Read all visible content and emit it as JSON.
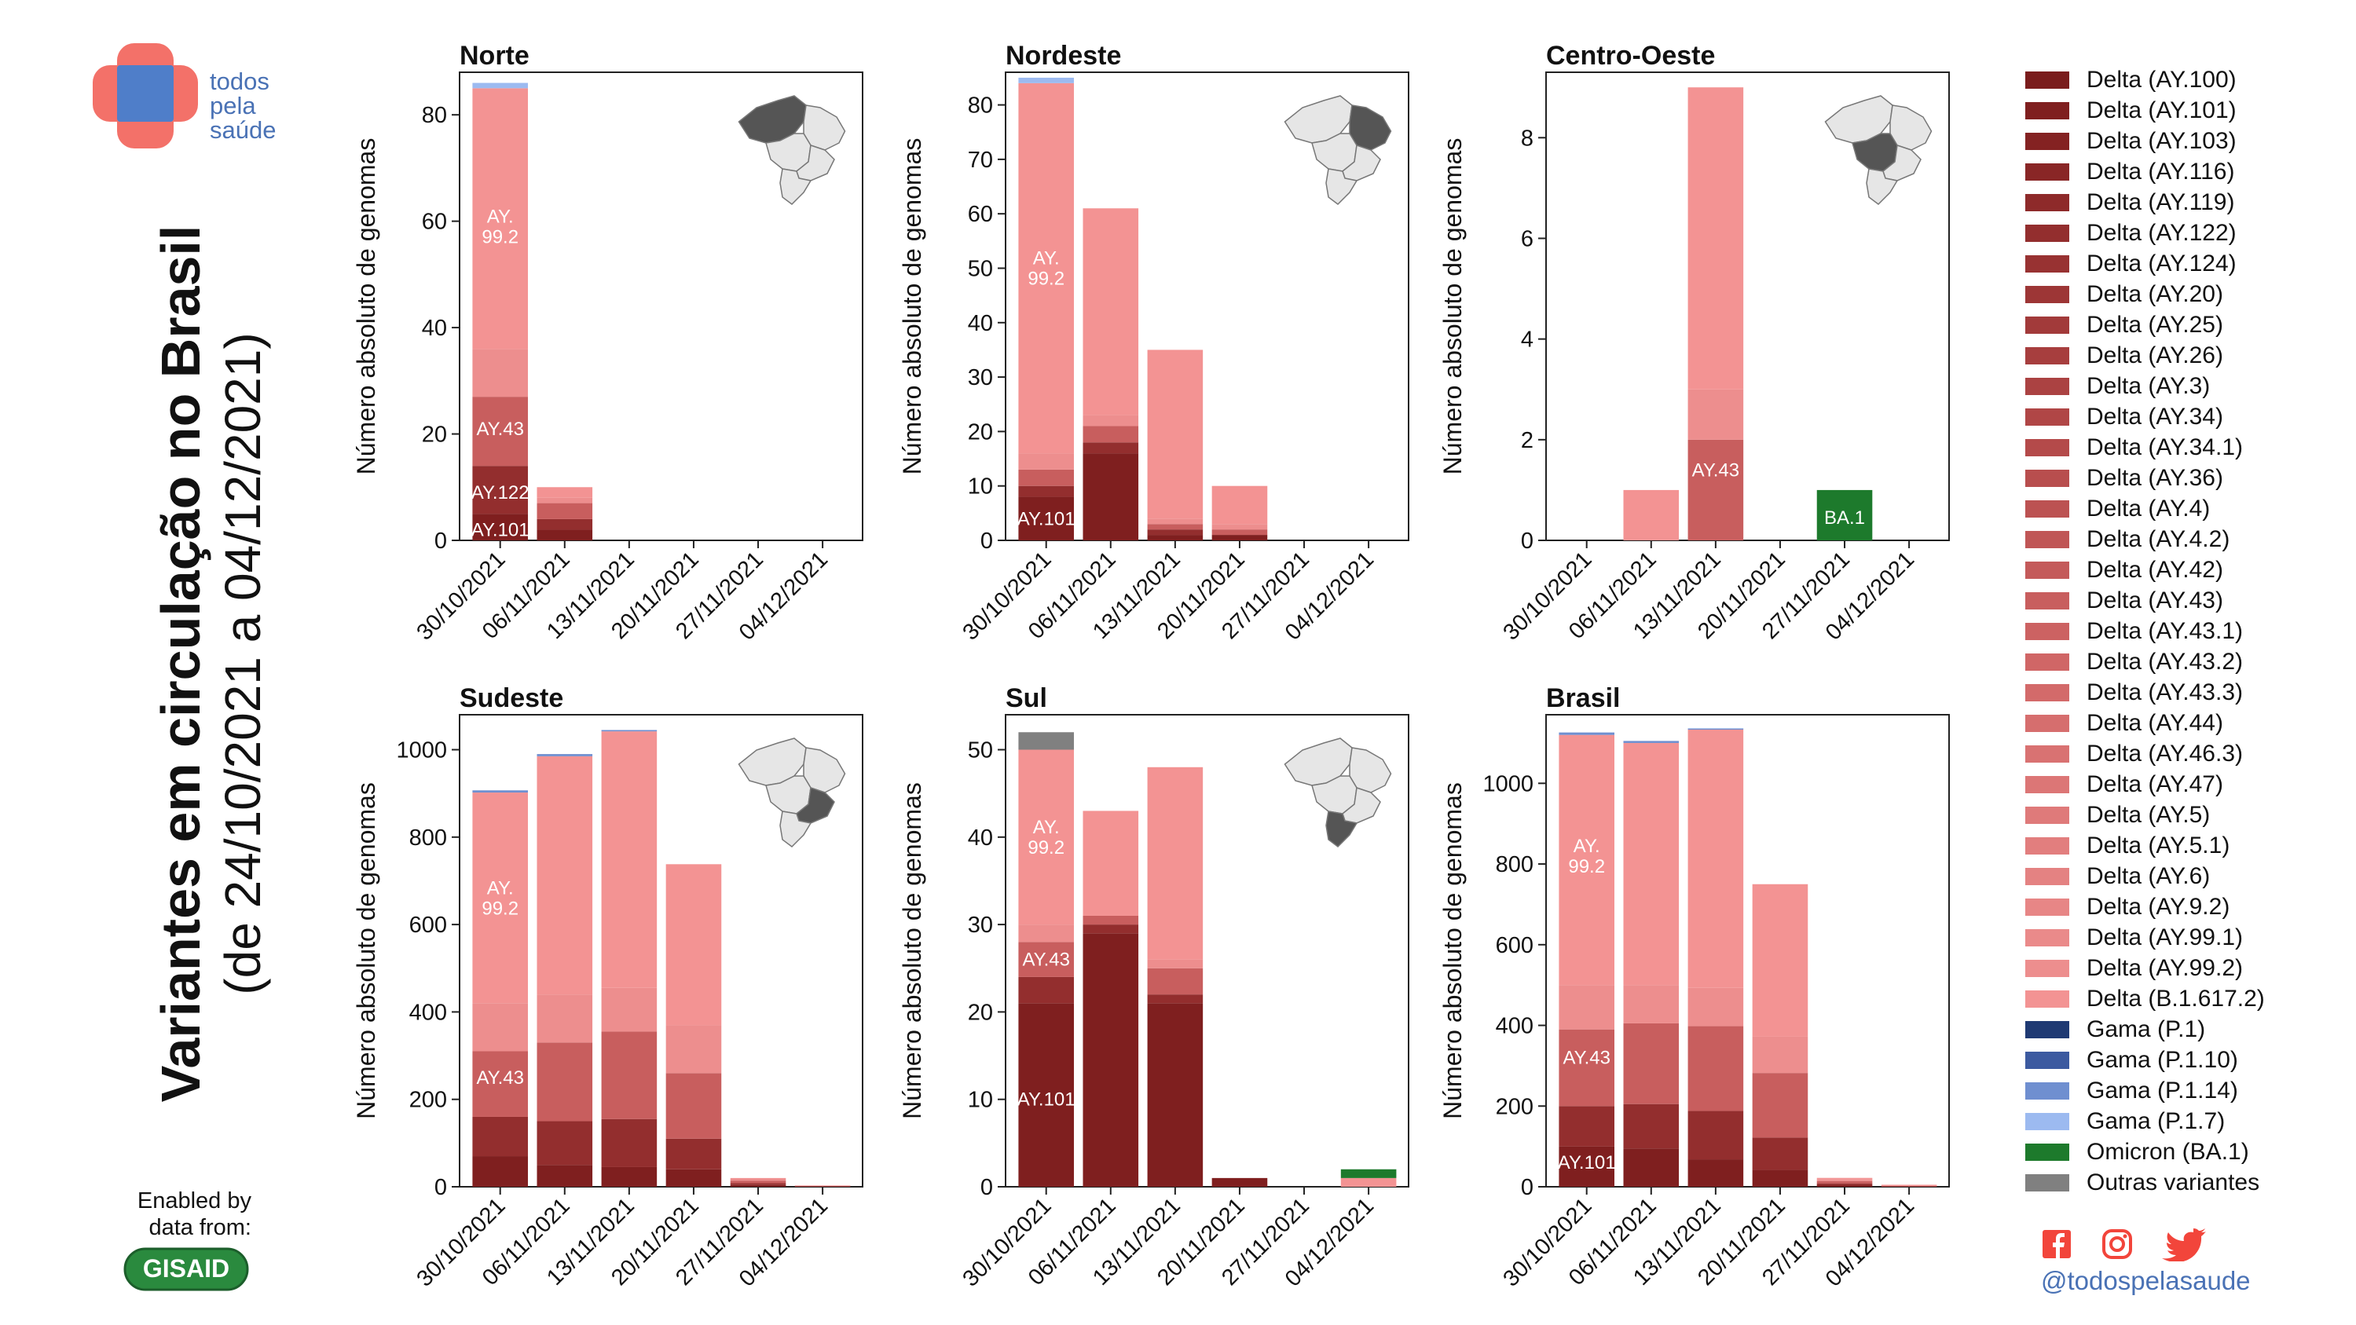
{
  "brand": {
    "line1": "todos",
    "line2": "pela",
    "line3": "saúde"
  },
  "title": {
    "line1": "Variantes em circulação no Brasil",
    "line2": "(de 24/10/2021 a 04/12/2021)"
  },
  "credit": {
    "line1": "Enabled by",
    "line2": "data from:",
    "logo": "GISAID"
  },
  "social": {
    "icons": [
      "facebook-icon",
      "instagram-icon",
      "twitter-icon"
    ],
    "handle": "@todospelasaude"
  },
  "colors": {
    "title_text": "#111111",
    "brand_blue": "#4a72b5",
    "brand_red": "#f37169",
    "omicron": "#1d7a2c",
    "others": "#808080",
    "gisaid_green": "#2a8a3e"
  },
  "legend": [
    {
      "label": "Delta (AY.100)",
      "color": "#7a1c1c"
    },
    {
      "label": "Delta (AY.101)",
      "color": "#7f1f1f"
    },
    {
      "label": "Delta (AY.103)",
      "color": "#842222"
    },
    {
      "label": "Delta (AY.116)",
      "color": "#892626"
    },
    {
      "label": "Delta (AY.119)",
      "color": "#8e2a2a"
    },
    {
      "label": "Delta (AY.122)",
      "color": "#932e2e"
    },
    {
      "label": "Delta (AY.124)",
      "color": "#983232"
    },
    {
      "label": "Delta (AY.20)",
      "color": "#9d3636"
    },
    {
      "label": "Delta (AY.25)",
      "color": "#a23a3a"
    },
    {
      "label": "Delta (AY.26)",
      "color": "#a73e3e"
    },
    {
      "label": "Delta (AY.3)",
      "color": "#ab4242"
    },
    {
      "label": "Delta (AY.34)",
      "color": "#b04646"
    },
    {
      "label": "Delta (AY.34.1)",
      "color": "#b44a4a"
    },
    {
      "label": "Delta (AY.36)",
      "color": "#b84e4e"
    },
    {
      "label": "Delta (AY.4)",
      "color": "#bc5252"
    },
    {
      "label": "Delta (AY.4.2)",
      "color": "#c05656"
    },
    {
      "label": "Delta (AY.42)",
      "color": "#c45a5a"
    },
    {
      "label": "Delta (AY.43)",
      "color": "#c85e5e"
    },
    {
      "label": "Delta (AY.43.1)",
      "color": "#cc6262"
    },
    {
      "label": "Delta (AY.43.2)",
      "color": "#d06666"
    },
    {
      "label": "Delta (AY.43.3)",
      "color": "#d36a6a"
    },
    {
      "label": "Delta (AY.44)",
      "color": "#d66e6e"
    },
    {
      "label": "Delta (AY.46.3)",
      "color": "#d97272"
    },
    {
      "label": "Delta (AY.47)",
      "color": "#dc7676"
    },
    {
      "label": "Delta (AY.5)",
      "color": "#df7a7a"
    },
    {
      "label": "Delta (AY.5.1)",
      "color": "#e27e7e"
    },
    {
      "label": "Delta (AY.6)",
      "color": "#e48282"
    },
    {
      "label": "Delta (AY.9.2)",
      "color": "#e78686"
    },
    {
      "label": "Delta (AY.99.1)",
      "color": "#ea8a8a"
    },
    {
      "label": "Delta (AY.99.2)",
      "color": "#ed8e8e"
    },
    {
      "label": "Delta (B.1.617.2)",
      "color": "#f39393"
    },
    {
      "label": "Gama (P.1)",
      "color": "#1f3a73"
    },
    {
      "label": "Gama (P.1.10)",
      "color": "#3c5aa0"
    },
    {
      "label": "Gama (P.1.14)",
      "color": "#6f8fd0"
    },
    {
      "label": "Gama (P.1.7)",
      "color": "#9cbaf0"
    },
    {
      "label": "Omicron (BA.1)",
      "color": "#1d7a2c"
    },
    {
      "label": "Outras variantes",
      "color": "#808080"
    }
  ],
  "chart_data": [
    {
      "type": "bar",
      "stacked": true,
      "title": "Norte",
      "map_highlight": "norte",
      "xlabel": "",
      "ylabel": "Número absoluto de genomas",
      "ylim": [
        0,
        88
      ],
      "yticks": [
        0,
        20,
        40,
        60,
        80
      ],
      "categories": [
        "30/10/2021",
        "06/11/2021",
        "13/11/2021",
        "20/11/2021",
        "27/11/2021",
        "04/12/2021"
      ],
      "series": [
        {
          "name": "Delta (AY.101)",
          "color": "#7f1f1f",
          "values": [
            5,
            2,
            0,
            0,
            0,
            0
          ]
        },
        {
          "name": "Delta (AY.122)",
          "color": "#932e2e",
          "values": [
            9,
            2,
            0,
            0,
            0,
            0
          ]
        },
        {
          "name": "Delta (AY.43)",
          "color": "#c85e5e",
          "values": [
            13,
            3,
            0,
            0,
            0,
            0
          ]
        },
        {
          "name": "Delta (AY.99.2)",
          "color": "#ed8e8e",
          "values": [
            9,
            1,
            0,
            0,
            0,
            0
          ]
        },
        {
          "name": "Delta (B.1.617.2)",
          "color": "#f39393",
          "values": [
            49,
            2,
            0,
            0,
            0,
            0
          ]
        },
        {
          "name": "Gama (P.1.7)",
          "color": "#9cbaf0",
          "values": [
            1,
            0,
            0,
            0,
            0,
            0
          ]
        }
      ],
      "annotations": [
        {
          "text": "AY.101",
          "bar": 0,
          "y": 2
        },
        {
          "text": "AY.122",
          "bar": 0,
          "y": 9
        },
        {
          "text": "AY.43",
          "bar": 0,
          "y": 21
        },
        {
          "text": "AY.\n99.2",
          "bar": 0,
          "y": 59
        }
      ]
    },
    {
      "type": "bar",
      "stacked": true,
      "title": "Nordeste",
      "map_highlight": "nordeste",
      "xlabel": "",
      "ylabel": "Número absoluto de genomas",
      "ylim": [
        0,
        86
      ],
      "yticks": [
        0,
        10,
        20,
        30,
        40,
        50,
        60,
        70,
        80
      ],
      "categories": [
        "30/10/2021",
        "06/11/2021",
        "13/11/2021",
        "20/11/2021",
        "27/11/2021",
        "04/12/2021"
      ],
      "series": [
        {
          "name": "Delta (AY.101)",
          "color": "#7f1f1f",
          "values": [
            8,
            16,
            1,
            1,
            0,
            0
          ]
        },
        {
          "name": "Delta (AY.122)",
          "color": "#932e2e",
          "values": [
            2,
            2,
            1,
            0,
            0,
            0
          ]
        },
        {
          "name": "Delta (AY.43)",
          "color": "#c85e5e",
          "values": [
            3,
            3,
            1,
            1,
            0,
            0
          ]
        },
        {
          "name": "Delta (AY.99.2)",
          "color": "#ed8e8e",
          "values": [
            3,
            2,
            1,
            1,
            0,
            0
          ]
        },
        {
          "name": "Delta (B.1.617.2)",
          "color": "#f39393",
          "values": [
            68,
            38,
            31,
            7,
            0,
            0
          ]
        },
        {
          "name": "Gama (P.1.7)",
          "color": "#9cbaf0",
          "values": [
            1,
            0,
            0,
            0,
            0,
            0
          ]
        }
      ],
      "annotations": [
        {
          "text": "AY.101",
          "bar": 0,
          "y": 4
        },
        {
          "text": "AY.\n99.2",
          "bar": 0,
          "y": 50
        }
      ]
    },
    {
      "type": "bar",
      "stacked": true,
      "title": "Centro-Oeste",
      "map_highlight": "centro-oeste",
      "xlabel": "",
      "ylabel": "Número absoluto de genomas",
      "ylim": [
        0,
        9.3
      ],
      "yticks": [
        0,
        2,
        4,
        6,
        8
      ],
      "categories": [
        "30/10/2021",
        "06/11/2021",
        "13/11/2021",
        "20/11/2021",
        "27/11/2021",
        "04/12/2021"
      ],
      "series": [
        {
          "name": "Delta (AY.43)",
          "color": "#c85e5e",
          "values": [
            0,
            0,
            2,
            0,
            0,
            0
          ]
        },
        {
          "name": "Delta (AY.99.2)",
          "color": "#ed8e8e",
          "values": [
            0,
            0,
            1,
            0,
            0,
            0
          ]
        },
        {
          "name": "Delta (B.1.617.2)",
          "color": "#f39393",
          "values": [
            0,
            1,
            6,
            0,
            0,
            0
          ]
        },
        {
          "name": "Omicron (BA.1)",
          "color": "#1d7a2c",
          "values": [
            0,
            0,
            0,
            0,
            1,
            0
          ]
        }
      ],
      "annotations": [
        {
          "text": "AY.43",
          "bar": 2,
          "y": 1.4
        },
        {
          "text": "BA.1",
          "bar": 4,
          "y": 0.45
        }
      ]
    },
    {
      "type": "bar",
      "stacked": true,
      "title": "Sudeste",
      "map_highlight": "sudeste",
      "xlabel": "",
      "ylabel": "Número absoluto de genomas",
      "ylim": [
        0,
        1080
      ],
      "yticks": [
        0,
        200,
        400,
        600,
        800,
        1000
      ],
      "categories": [
        "30/10/2021",
        "06/11/2021",
        "13/11/2021",
        "20/11/2021",
        "27/11/2021",
        "04/12/2021"
      ],
      "series": [
        {
          "name": "Delta (AY.101)",
          "color": "#7f1f1f",
          "values": [
            70,
            50,
            45,
            40,
            4,
            0
          ]
        },
        {
          "name": "Delta (AY.122)",
          "color": "#932e2e",
          "values": [
            90,
            100,
            110,
            70,
            4,
            1
          ]
        },
        {
          "name": "Delta (AY.43)",
          "color": "#c85e5e",
          "values": [
            150,
            180,
            200,
            150,
            6,
            1
          ]
        },
        {
          "name": "Delta (AY.99.2)",
          "color": "#ed8e8e",
          "values": [
            110,
            110,
            100,
            110,
            4,
            1
          ]
        },
        {
          "name": "Delta (B.1.617.2)",
          "color": "#f39393",
          "values": [
            482,
            545,
            587,
            368,
            2,
            0
          ]
        },
        {
          "name": "Gama (P.1.14)",
          "color": "#6f8fd0",
          "values": [
            5,
            5,
            3,
            0,
            0,
            0
          ]
        }
      ],
      "annotations": [
        {
          "text": "AY.43",
          "bar": 0,
          "y": 250
        },
        {
          "text": "AY.\n99.2",
          "bar": 0,
          "y": 660
        }
      ]
    },
    {
      "type": "bar",
      "stacked": true,
      "title": "Sul",
      "map_highlight": "sul",
      "xlabel": "",
      "ylabel": "Número absoluto de genomas",
      "ylim": [
        0,
        54
      ],
      "yticks": [
        0,
        10,
        20,
        30,
        40,
        50
      ],
      "categories": [
        "30/10/2021",
        "06/11/2021",
        "13/11/2021",
        "20/11/2021",
        "27/11/2021",
        "04/12/2021"
      ],
      "series": [
        {
          "name": "Delta (AY.101)",
          "color": "#7f1f1f",
          "values": [
            21,
            29,
            21,
            1,
            0,
            0
          ]
        },
        {
          "name": "Delta (AY.122)",
          "color": "#932e2e",
          "values": [
            3,
            1,
            1,
            0,
            0,
            0
          ]
        },
        {
          "name": "Delta (AY.43)",
          "color": "#c85e5e",
          "values": [
            4,
            1,
            3,
            0,
            0,
            0
          ]
        },
        {
          "name": "Delta (AY.99.2)",
          "color": "#ed8e8e",
          "values": [
            2,
            0,
            1,
            0,
            0,
            0
          ]
        },
        {
          "name": "Delta (B.1.617.2)",
          "color": "#f39393",
          "values": [
            20,
            12,
            22,
            0,
            0,
            1
          ]
        },
        {
          "name": "Omicron (BA.1)",
          "color": "#1d7a2c",
          "values": [
            0,
            0,
            0,
            0,
            0,
            1
          ]
        },
        {
          "name": "Outras variantes",
          "color": "#808080",
          "values": [
            2,
            0,
            0,
            0,
            0,
            0
          ]
        }
      ],
      "annotations": [
        {
          "text": "AY.101",
          "bar": 0,
          "y": 10
        },
        {
          "text": "AY.43",
          "bar": 0,
          "y": 26
        },
        {
          "text": "AY.\n99.2",
          "bar": 0,
          "y": 40
        }
      ]
    },
    {
      "type": "bar",
      "stacked": true,
      "title": "Brasil",
      "map_highlight": "",
      "xlabel": "",
      "ylabel": "Número absoluto de genomas",
      "ylim": [
        0,
        1170
      ],
      "yticks": [
        0,
        200,
        400,
        600,
        800,
        1000
      ],
      "categories": [
        "30/10/2021",
        "06/11/2021",
        "13/11/2021",
        "20/11/2021",
        "27/11/2021",
        "04/12/2021"
      ],
      "series": [
        {
          "name": "Delta (AY.101)",
          "color": "#7f1f1f",
          "values": [
            100,
            95,
            68,
            42,
            4,
            0
          ]
        },
        {
          "name": "Delta (AY.122)",
          "color": "#932e2e",
          "values": [
            100,
            110,
            120,
            80,
            4,
            1
          ]
        },
        {
          "name": "Delta (AY.43)",
          "color": "#c85e5e",
          "values": [
            190,
            200,
            210,
            160,
            6,
            1
          ]
        },
        {
          "name": "Delta (AY.99.2)",
          "color": "#ed8e8e",
          "values": [
            110,
            95,
            95,
            90,
            4,
            1
          ]
        },
        {
          "name": "Delta (B.1.617.2)",
          "color": "#f39393",
          "values": [
            620,
            600,
            640,
            378,
            4,
            2
          ]
        },
        {
          "name": "Gama (P.1.14)",
          "color": "#6f8fd0",
          "values": [
            6,
            5,
            3,
            0,
            0,
            0
          ]
        }
      ],
      "annotations": [
        {
          "text": "AY.101",
          "bar": 0,
          "y": 60
        },
        {
          "text": "AY.43",
          "bar": 0,
          "y": 320
        },
        {
          "text": "AY.\n99.2",
          "bar": 0,
          "y": 820
        }
      ]
    }
  ]
}
